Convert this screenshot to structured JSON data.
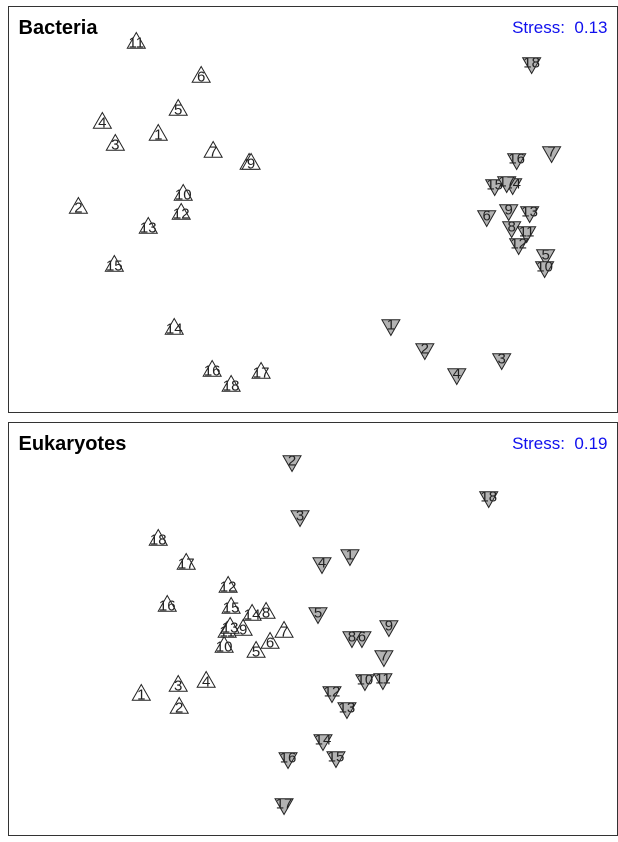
{
  "chart_data": [
    {
      "type": "scatter",
      "title": "Bacteria",
      "annotation": "Stress:  0.13",
      "xlim": [
        0,
        610
      ],
      "ylim": [
        0,
        406
      ],
      "series": [
        {
          "marker": "triangle-up",
          "color": "#ffffff",
          "labels": [
            1,
            2,
            3,
            4,
            5,
            6,
            7,
            8,
            9,
            10,
            11,
            12,
            13,
            14,
            15,
            16,
            17,
            18
          ],
          "x": [
            150,
            70,
            107,
            94,
            170,
            193,
            205,
            241,
            243,
            175,
            128,
            173,
            140,
            166,
            106,
            204,
            253,
            223
          ],
          "y": [
            279,
            206,
            269,
            291,
            304,
            337,
            262,
            250,
            250,
            219,
            371,
            200,
            186,
            85,
            148,
            43,
            41,
            28
          ]
        },
        {
          "marker": "triangle-down",
          "color": "#b3b3b3",
          "labels": [
            1,
            2,
            3,
            4,
            5,
            6,
            7,
            8,
            9,
            10,
            11,
            12,
            13,
            14,
            15,
            16,
            17,
            18
          ],
          "x": [
            383,
            417,
            494,
            449,
            538,
            479,
            544,
            504,
            501,
            537,
            519,
            511,
            522,
            505,
            487,
            509,
            499,
            524
          ],
          "y": [
            86,
            62,
            52,
            37,
            156,
            195,
            259,
            184,
            201,
            144,
            179,
            167,
            199,
            227,
            226,
            252,
            229,
            348
          ]
        }
      ]
    },
    {
      "type": "scatter",
      "title": "Eukaryotes",
      "annotation": "Stress:  0.19",
      "xlim": [
        0,
        610
      ],
      "ylim": [
        0,
        413
      ],
      "series": [
        {
          "marker": "triangle-up",
          "color": "#ffffff",
          "labels": [
            1,
            2,
            3,
            4,
            5,
            6,
            7,
            8,
            9,
            10,
            11,
            12,
            13,
            14,
            15,
            16,
            17,
            18
          ],
          "x": [
            133,
            171,
            170,
            198,
            248,
            262,
            276,
            258,
            235,
            216,
            219,
            220,
            222,
            244,
            223,
            159,
            178,
            150
          ],
          "y": [
            142,
            129,
            151,
            155,
            185,
            194,
            205,
            224,
            207,
            190,
            205,
            250,
            209,
            222,
            229,
            231,
            273,
            297
          ]
        },
        {
          "marker": "triangle-down",
          "color": "#b3b3b3",
          "labels": [
            1,
            2,
            3,
            4,
            5,
            6,
            7,
            8,
            9,
            10,
            11,
            12,
            13,
            14,
            15,
            16,
            17,
            18
          ],
          "x": [
            342,
            284,
            292,
            314,
            310,
            354,
            376,
            344,
            381,
            357,
            375,
            324,
            339,
            315,
            328,
            280,
            276,
            481
          ],
          "y": [
            279,
            373,
            318,
            271,
            221,
            197,
            178,
            197,
            208,
            154,
            155,
            142,
            126,
            94,
            77,
            76,
            30,
            337
          ]
        }
      ]
    }
  ]
}
